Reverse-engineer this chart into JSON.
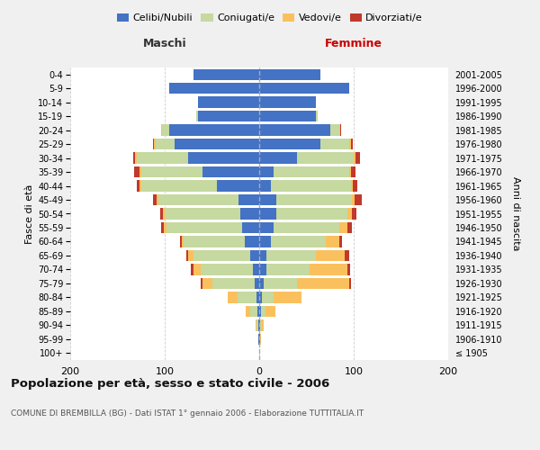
{
  "age_groups": [
    "100+",
    "95-99",
    "90-94",
    "85-89",
    "80-84",
    "75-79",
    "70-74",
    "65-69",
    "60-64",
    "55-59",
    "50-54",
    "45-49",
    "40-44",
    "35-39",
    "30-34",
    "25-29",
    "20-24",
    "15-19",
    "10-14",
    "5-9",
    "0-4"
  ],
  "birth_years": [
    "≤ 1905",
    "1906-1910",
    "1911-1915",
    "1916-1920",
    "1921-1925",
    "1926-1930",
    "1931-1935",
    "1936-1940",
    "1941-1945",
    "1946-1950",
    "1951-1955",
    "1956-1960",
    "1961-1965",
    "1966-1970",
    "1971-1975",
    "1976-1980",
    "1981-1985",
    "1986-1990",
    "1991-1995",
    "1996-2000",
    "2001-2005"
  ],
  "males_celibi": [
    0,
    1,
    1,
    2,
    3,
    5,
    7,
    10,
    15,
    18,
    20,
    22,
    45,
    60,
    75,
    90,
    95,
    65,
    65,
    95,
    70
  ],
  "males_coniugati": [
    0,
    0,
    2,
    8,
    20,
    45,
    55,
    60,
    65,
    80,
    80,
    85,
    80,
    65,
    55,
    20,
    8,
    2,
    0,
    0,
    0
  ],
  "males_vedovi": [
    0,
    0,
    1,
    4,
    10,
    10,
    8,
    5,
    2,
    3,
    2,
    2,
    2,
    2,
    1,
    1,
    1,
    0,
    0,
    0,
    0
  ],
  "males_divorziati": [
    0,
    0,
    0,
    0,
    0,
    2,
    2,
    2,
    2,
    3,
    3,
    3,
    3,
    5,
    2,
    1,
    0,
    0,
    0,
    0,
    0
  ],
  "females_nubili": [
    0,
    1,
    1,
    2,
    3,
    5,
    8,
    8,
    12,
    15,
    18,
    18,
    12,
    15,
    40,
    65,
    75,
    60,
    60,
    95,
    65
  ],
  "females_coniugate": [
    0,
    0,
    1,
    5,
    12,
    35,
    45,
    52,
    58,
    70,
    75,
    80,
    85,
    80,
    60,
    30,
    10,
    2,
    0,
    0,
    0
  ],
  "females_vedove": [
    0,
    1,
    3,
    10,
    30,
    55,
    40,
    30,
    15,
    8,
    5,
    3,
    2,
    2,
    2,
    2,
    1,
    0,
    0,
    0,
    0
  ],
  "females_divorziate": [
    0,
    0,
    0,
    0,
    0,
    2,
    3,
    5,
    3,
    5,
    5,
    8,
    5,
    5,
    5,
    2,
    1,
    0,
    0,
    0,
    0
  ],
  "color_celibi": "#4472c4",
  "color_coniugati": "#c5d9a0",
  "color_vedovi": "#fac05e",
  "color_divorziati": "#c0392b",
  "title": "Popolazione per età, sesso e stato civile - 2006",
  "subtitle": "COMUNE DI BREMBILLA (BG) - Dati ISTAT 1° gennaio 2006 - Elaborazione TUTTITALIA.IT",
  "ylabel_left": "Fasce di età",
  "ylabel_right": "Anni di nascita",
  "label_maschi": "Maschi",
  "label_femmine": "Femmine",
  "xlim": 200,
  "bg_color": "#f0f0f0",
  "plot_bg_color": "#ffffff",
  "legend_labels": [
    "Celibi/Nubili",
    "Coniugati/e",
    "Vedovi/e",
    "Divorziati/e"
  ]
}
